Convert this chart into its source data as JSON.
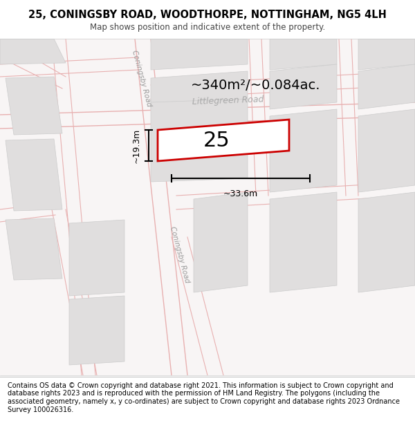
{
  "title": "25, CONINGSBY ROAD, WOODTHORPE, NOTTINGHAM, NG5 4LH",
  "subtitle": "Map shows position and indicative extent of the property.",
  "footer": "Contains OS data © Crown copyright and database right 2021. This information is subject to Crown copyright and database rights 2023 and is reproduced with the permission of HM Land Registry. The polygons (including the associated geometry, namely x, y co-ordinates) are subject to Crown copyright and database rights 2023 Ordnance Survey 100026316.",
  "area_label": "~340m²/~0.084ac.",
  "property_number": "25",
  "dim_width": "~33.6m",
  "dim_height": "~19.3m",
  "road1_label": "Coningsby Road",
  "road2_label": "Littlegreen Road",
  "road3_label": "Coningsby Road",
  "title_fontsize": 10.5,
  "subtitle_fontsize": 8.5,
  "footer_fontsize": 7.0,
  "area_fontsize": 14,
  "num_fontsize": 22,
  "dim_fontsize": 9
}
